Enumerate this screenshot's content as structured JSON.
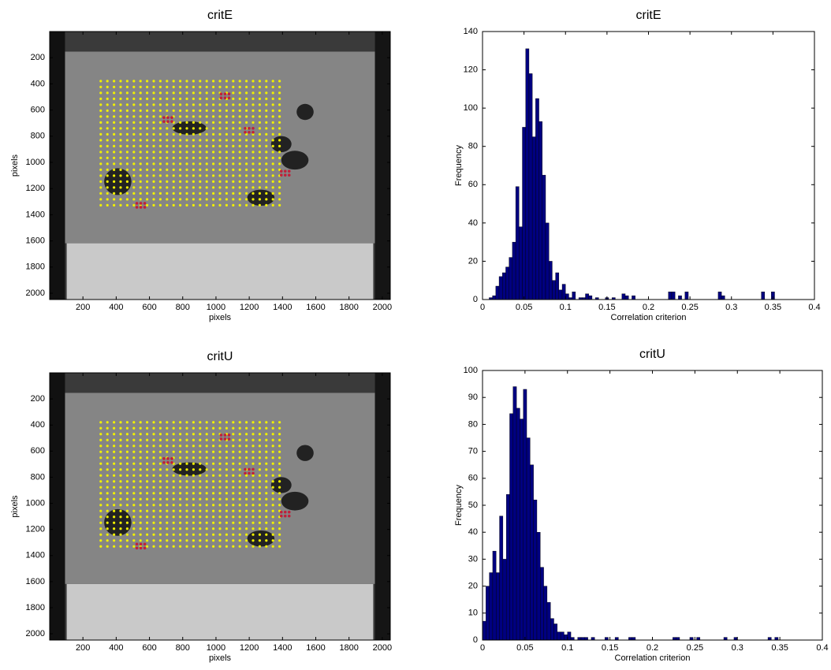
{
  "chart_data": [
    {
      "type": "image",
      "title": "critE",
      "xlabel": "pixels",
      "ylabel": "pixels",
      "xlim": [
        0,
        2048
      ],
      "ylim": [
        0,
        2048
      ],
      "y_reversed": true,
      "xticks": [
        200,
        400,
        600,
        800,
        1000,
        1200,
        1400,
        1600,
        1800,
        2000
      ],
      "yticks": [
        200,
        400,
        600,
        800,
        1000,
        1200,
        1400,
        1600,
        1800,
        2000
      ]
    },
    {
      "type": "histogram",
      "title": "critE",
      "xlabel": "Correlation criterion",
      "ylabel": "Frequency",
      "color": "#000080",
      "bins": [
        0.008,
        0.012,
        0.016,
        0.02,
        0.024,
        0.028,
        0.032,
        0.036,
        0.04,
        0.044,
        0.048,
        0.052,
        0.056,
        0.06,
        0.064,
        0.068,
        0.072,
        0.076,
        0.08,
        0.084,
        0.088,
        0.092,
        0.096,
        0.1,
        0.104,
        0.108,
        0.112,
        0.116,
        0.12,
        0.124,
        0.128,
        0.132,
        0.136,
        0.14,
        0.144,
        0.148,
        0.152,
        0.156,
        0.16,
        0.164,
        0.168,
        0.172,
        0.176,
        0.18,
        0.184,
        0.188,
        0.192,
        0.196,
        0.2,
        0.204,
        0.208,
        0.212,
        0.216,
        0.22,
        0.224,
        0.228,
        0.232,
        0.236,
        0.24,
        0.244,
        0.248,
        0.252,
        0.256,
        0.26,
        0.264,
        0.268,
        0.272,
        0.276,
        0.28,
        0.284,
        0.288,
        0.292,
        0.296,
        0.3,
        0.304,
        0.308,
        0.312,
        0.316,
        0.32,
        0.324,
        0.328,
        0.332,
        0.336,
        0.34,
        0.344,
        0.348,
        0.352,
        0.356
      ],
      "values": [
        1,
        2,
        7,
        12,
        14,
        17,
        22,
        30,
        59,
        38,
        90,
        131,
        118,
        85,
        105,
        93,
        65,
        40,
        20,
        10,
        14,
        5,
        8,
        3,
        1,
        4,
        0,
        1,
        1,
        3,
        2,
        0,
        1,
        0,
        0,
        1,
        0,
        1,
        0,
        0,
        3,
        2,
        0,
        2,
        0,
        0,
        0,
        0,
        0,
        0,
        0,
        0,
        0,
        0,
        4,
        4,
        0,
        2,
        0,
        4,
        0,
        0,
        0,
        0,
        0,
        0,
        0,
        0,
        0,
        4,
        2,
        0,
        0,
        0,
        0,
        0,
        0,
        0,
        0,
        0,
        0,
        0,
        4,
        0,
        0,
        4,
        0
      ],
      "xlim": [
        0,
        0.4
      ],
      "ylim": [
        0,
        140
      ],
      "xticks": [
        0,
        0.05,
        0.1,
        0.15,
        0.2,
        0.25,
        0.3,
        0.35,
        0.4
      ],
      "yticks": [
        0,
        20,
        40,
        60,
        80,
        100,
        120,
        140
      ]
    },
    {
      "type": "image",
      "title": "critU",
      "xlabel": "pixels",
      "ylabel": "pixels",
      "xlim": [
        0,
        2048
      ],
      "ylim": [
        0,
        2048
      ],
      "y_reversed": true,
      "xticks": [
        200,
        400,
        600,
        800,
        1000,
        1200,
        1400,
        1600,
        1800,
        2000
      ],
      "yticks": [
        200,
        400,
        600,
        800,
        1000,
        1200,
        1400,
        1600,
        1800,
        2000
      ]
    },
    {
      "type": "histogram",
      "title": "critU",
      "xlabel": "Correlation criterion",
      "ylabel": "Frequency",
      "color": "#000080",
      "bins": [
        0,
        0.004,
        0.008,
        0.012,
        0.016,
        0.02,
        0.024,
        0.028,
        0.032,
        0.036,
        0.04,
        0.044,
        0.048,
        0.052,
        0.056,
        0.06,
        0.064,
        0.068,
        0.072,
        0.076,
        0.08,
        0.084,
        0.088,
        0.092,
        0.096,
        0.1,
        0.104,
        0.108,
        0.112,
        0.116,
        0.12,
        0.124,
        0.128,
        0.132,
        0.136,
        0.14,
        0.144,
        0.148,
        0.152,
        0.156,
        0.16,
        0.164,
        0.168,
        0.172,
        0.176,
        0.18,
        0.184,
        0.188,
        0.192,
        0.196,
        0.2,
        0.204,
        0.208,
        0.212,
        0.216,
        0.22,
        0.224,
        0.228,
        0.232,
        0.236,
        0.24,
        0.244,
        0.248,
        0.252,
        0.256,
        0.26,
        0.264,
        0.268,
        0.272,
        0.276,
        0.28,
        0.284,
        0.288,
        0.292,
        0.296,
        0.3,
        0.304,
        0.308,
        0.312,
        0.316,
        0.32,
        0.324,
        0.328,
        0.332,
        0.336,
        0.34,
        0.344,
        0.348,
        0.352,
        0.356
      ],
      "values": [
        7,
        20,
        25,
        33,
        25,
        46,
        30,
        54,
        84,
        94,
        86,
        82,
        93,
        75,
        65,
        52,
        40,
        27,
        20,
        14,
        8,
        6,
        3,
        3,
        2,
        3,
        1,
        0,
        1,
        1,
        1,
        0,
        1,
        0,
        0,
        0,
        1,
        0,
        0,
        1,
        0,
        0,
        0,
        1,
        1,
        0,
        0,
        0,
        0,
        0,
        0,
        0,
        0,
        0,
        0,
        0,
        1,
        1,
        0,
        0,
        0,
        1,
        0,
        1,
        0,
        0,
        0,
        0,
        0,
        0,
        0,
        1,
        0,
        0,
        1,
        0,
        0,
        0,
        0,
        0,
        0,
        0,
        0,
        0,
        1,
        0,
        1,
        0,
        0
      ],
      "xlim": [
        0,
        0.4
      ],
      "ylim": [
        0,
        100
      ],
      "xticks": [
        0,
        0.05,
        0.1,
        0.15,
        0.2,
        0.25,
        0.3,
        0.35,
        0.4
      ],
      "yticks": [
        0,
        10,
        20,
        30,
        40,
        50,
        60,
        70,
        80,
        90,
        100
      ]
    }
  ]
}
